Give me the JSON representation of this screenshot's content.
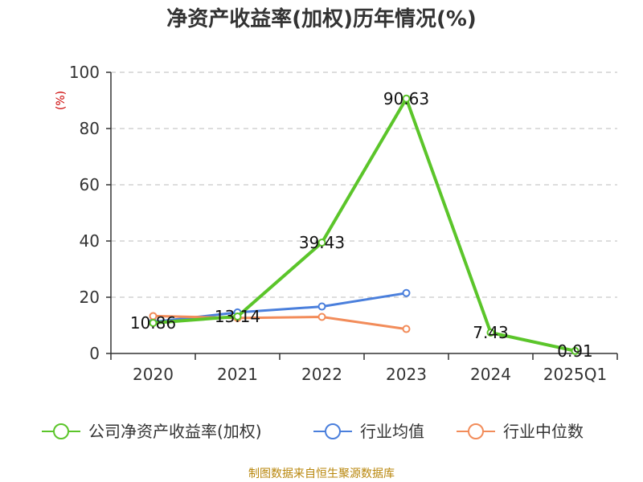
{
  "chart_data": {
    "type": "line",
    "title": "净资产收益率(加权)历年情况(%)",
    "ylabel": "(%)",
    "xlabel": "",
    "ylim": [
      0,
      100
    ],
    "yticks": [
      0,
      20,
      40,
      60,
      80,
      100
    ],
    "categories": [
      "2020",
      "2021",
      "2022",
      "2023",
      "2024",
      "2025Q1"
    ],
    "series": [
      {
        "name": "公司净资产收益率(加权)",
        "color": "#5bc52a",
        "values": [
          10.86,
          13.14,
          39.43,
          90.63,
          7.43,
          0.91
        ],
        "labels": [
          "10.86",
          "13.14",
          "39.43",
          "90.63",
          "7.43",
          "0.91"
        ]
      },
      {
        "name": "行业均值",
        "color": "#4a7fdc",
        "values": [
          11.2,
          14.6,
          16.7,
          21.5,
          null,
          null
        ]
      },
      {
        "name": "行业中位数",
        "color": "#f28c5a",
        "values": [
          13.3,
          12.6,
          13.0,
          8.7,
          null,
          null
        ]
      }
    ],
    "legend_position": "bottom",
    "grid": true
  },
  "source_text": "制图数据来自恒生聚源数据库"
}
